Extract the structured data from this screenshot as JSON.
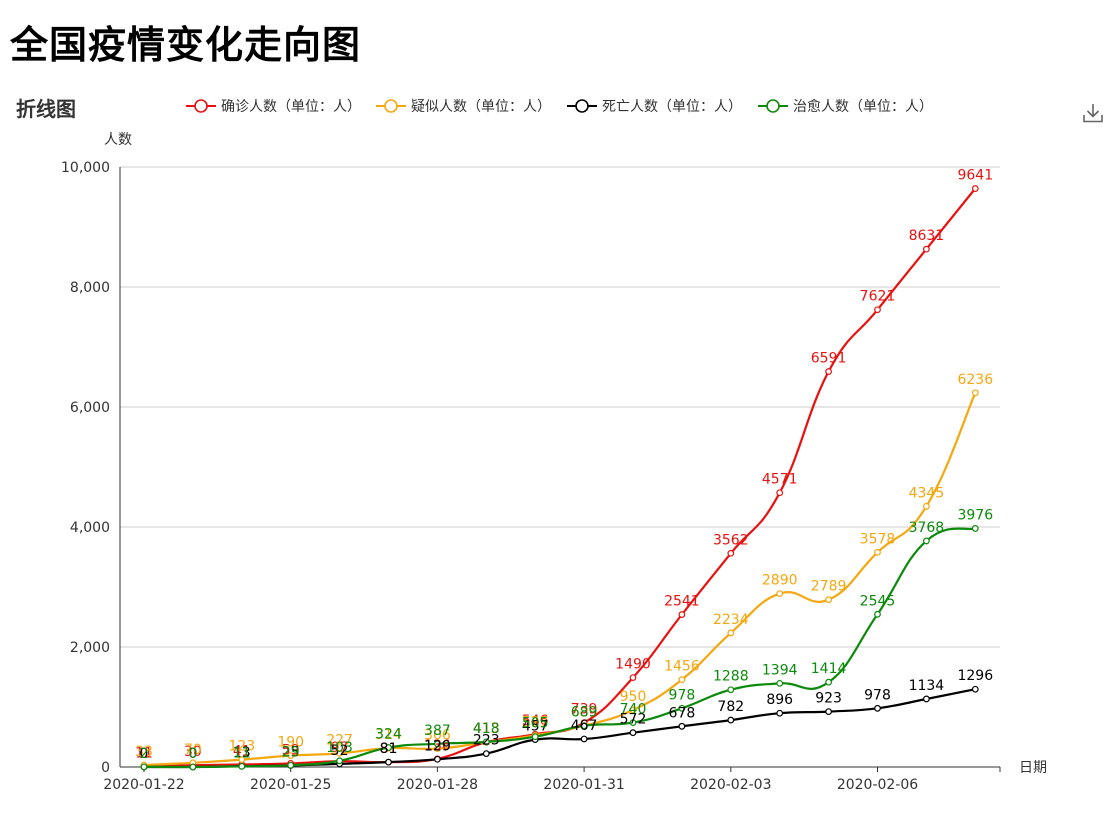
{
  "page": {
    "title": "全国疫情变化走向图"
  },
  "toolbar": {
    "download_icon": "download-icon"
  },
  "chart_data": {
    "type": "line",
    "title": "折线图",
    "ylabel": "人数",
    "xlabel": "日期",
    "ylim": [
      0,
      10000
    ],
    "yticks": [
      "0",
      "2,000",
      "4,000",
      "6,000",
      "8,000",
      "10,000"
    ],
    "yticks_values": [
      0,
      2000,
      4000,
      6000,
      8000,
      10000
    ],
    "xtick_labels": [
      "2020-01-22",
      "2020-01-25",
      "2020-01-28",
      "2020-01-31",
      "2020-02-03",
      "2020-02-06"
    ],
    "grid": true,
    "legend_position": "top",
    "categories": [
      "2020-01-22",
      "2020-01-23",
      "2020-01-24",
      "2020-01-25",
      "2020-01-26",
      "2020-01-27",
      "2020-01-28",
      "2020-01-29",
      "2020-01-30",
      "2020-01-31",
      "2020-02-01",
      "2020-02-02",
      "2020-02-03",
      "2020-02-04",
      "2020-02-05",
      "2020-02-06",
      "2020-02-07",
      "2020-02-08"
    ],
    "series": [
      {
        "name": "确诊人数（单位：人）",
        "color": "#e8110f",
        "values": [
          11,
          30,
          41,
          59,
          97,
          81,
          136,
          413,
          546,
          739,
          1490,
          2541,
          3562,
          4571,
          6591,
          7621,
          8631,
          9641
        ]
      },
      {
        "name": "疑似人数（单位：人）",
        "color": "#f5a70f",
        "values": [
          33,
          70,
          123,
          190,
          227,
          314,
          306,
          413,
          527,
          689,
          950,
          1456,
          2234,
          2890,
          2789,
          3578,
          4345,
          6236
        ]
      },
      {
        "name": "死亡人数（单位：人）",
        "color": "#000000",
        "values": [
          0,
          0,
          13,
          25,
          52,
          81,
          129,
          223,
          457,
          467,
          572,
          678,
          782,
          896,
          923,
          978,
          1134,
          1296
        ]
      },
      {
        "name": "治愈人数（单位：人）",
        "color": "#0b8a0b",
        "values": [
          2,
          0,
          11,
          29,
          103,
          324,
          387,
          418,
          505,
          689,
          740,
          978,
          1288,
          1394,
          1414,
          2545,
          3768,
          3976
        ]
      }
    ]
  }
}
